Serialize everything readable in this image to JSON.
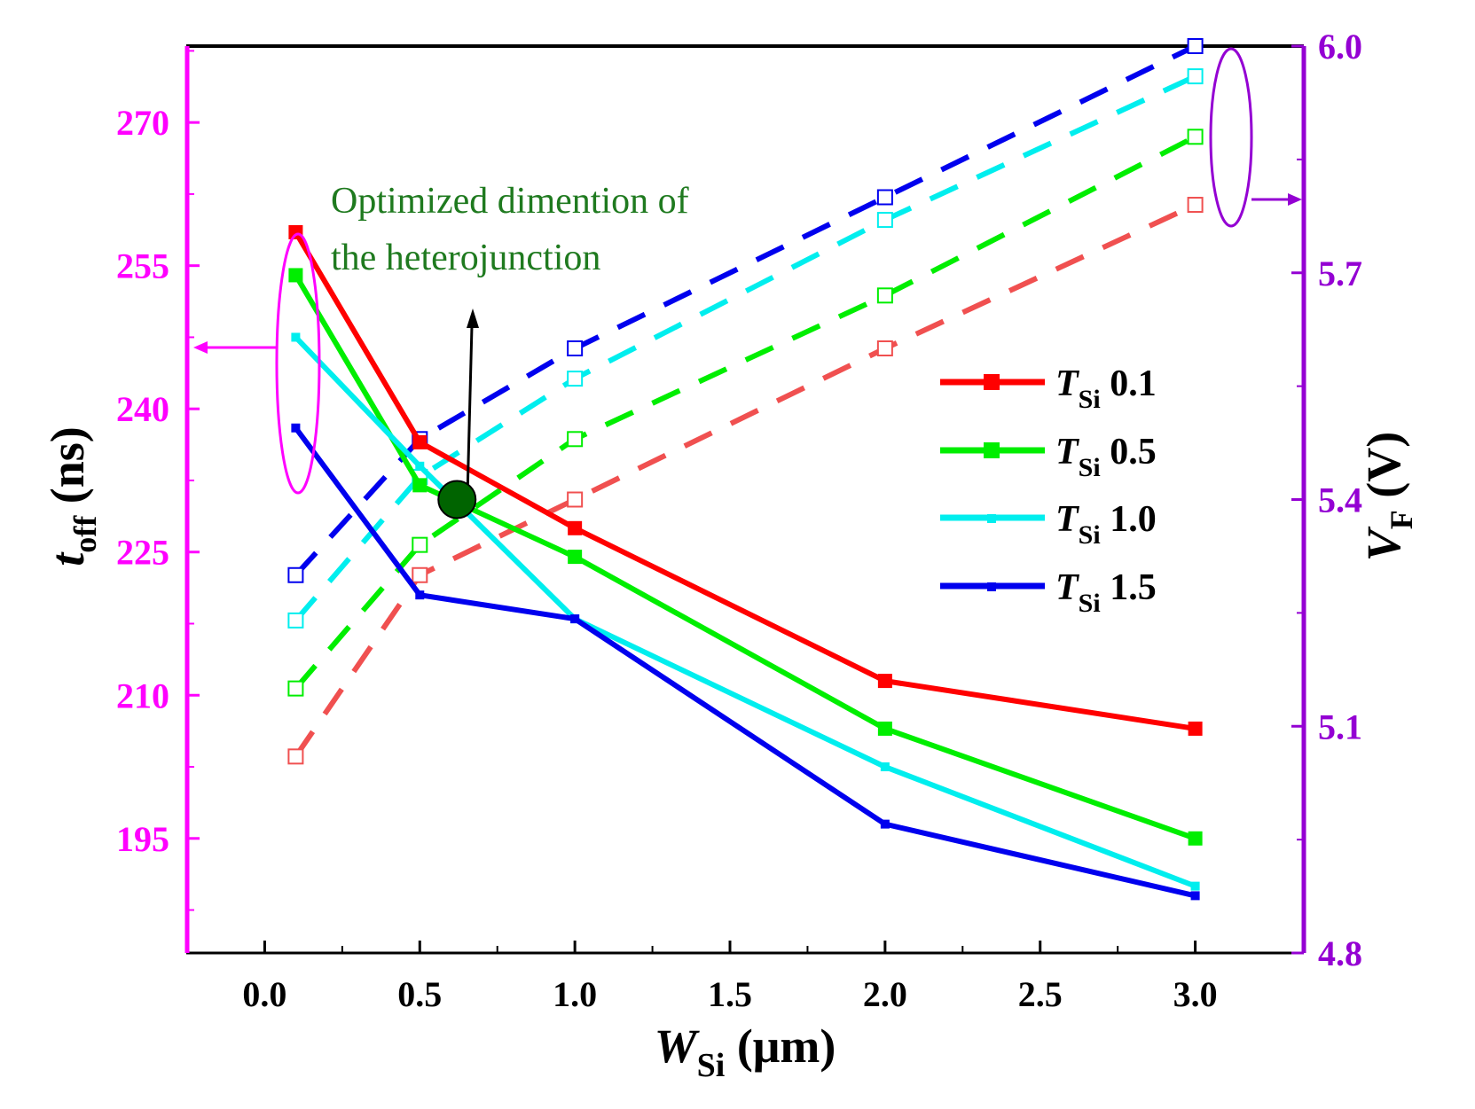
{
  "chart_data": {
    "type": "line",
    "x": [
      0.1,
      0.5,
      1.0,
      2.0,
      3.0
    ],
    "xlim": [
      -0.25,
      3.35
    ],
    "xticks": [
      "0.0",
      "0.5",
      "1.0",
      "1.5",
      "2.0",
      "2.5",
      "3.0"
    ],
    "xlabel": {
      "main": "W",
      "sub": "Si",
      "unit": " (μm)"
    },
    "ylabel_left": {
      "main": "t",
      "sub": "off",
      "unit": " (ns)"
    },
    "ylabel_right": {
      "main": "V",
      "sub": "F",
      "unit": " (V)"
    },
    "ylim_left": [
      183,
      278
    ],
    "yticks_left": [
      "195",
      "210",
      "225",
      "240",
      "255",
      "270"
    ],
    "ylim_right": [
      4.8,
      6.0
    ],
    "yticks_right": [
      "4.8",
      "5.1",
      "5.4",
      "5.7",
      "6.0"
    ],
    "colors": {
      "left_axis": "#ff00ff",
      "right_axis": "#9400d3",
      "annotation": "#1f7a1f"
    },
    "series": [
      {
        "name_main": "T",
        "name_sub": "Si",
        "name_val": " 0.1",
        "color": "#ff0000",
        "dash_color": "#f05050",
        "toff": [
          258.5,
          236.5,
          227.5,
          211.5,
          206.5
        ],
        "vf": [
          5.06,
          5.3,
          5.4,
          5.6,
          5.79
        ]
      },
      {
        "name_main": "T",
        "name_sub": "Si",
        "name_val": " 0.5",
        "color": "#00ee00",
        "dash_color": "#00ee00",
        "toff": [
          254.0,
          232.0,
          224.5,
          206.5,
          195.0
        ],
        "vf": [
          5.15,
          5.34,
          5.48,
          5.67,
          5.88
        ]
      },
      {
        "name_main": "T",
        "name_sub": "Si",
        "name_val": " 1.0",
        "color": "#00eeee",
        "dash_color": "#00eeee",
        "toff": [
          247.5,
          234.0,
          218.0,
          202.5,
          190.0
        ],
        "vf": [
          5.24,
          5.43,
          5.56,
          5.77,
          5.96
        ]
      },
      {
        "name_main": "T",
        "name_sub": "Si",
        "name_val": " 1.5",
        "color": "#0000ee",
        "dash_color": "#0000ee",
        "toff": [
          238.0,
          220.5,
          218.0,
          196.5,
          189.0
        ],
        "vf": [
          5.3,
          5.48,
          5.6,
          5.8,
          6.0
        ]
      }
    ],
    "annotation": {
      "line1": "Optimized dimention of",
      "line2": "the heterojunction",
      "x": 0.62,
      "toff": 230.5
    }
  }
}
